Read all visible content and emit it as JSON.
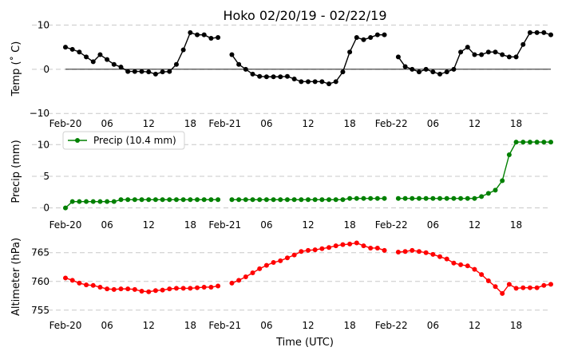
{
  "chart_data": {
    "title": "Hoko 02/20/19 - 02/22/19",
    "xlabel": "Time (UTC)",
    "x_ticks": [
      "Feb-20",
      "06",
      "12",
      "18",
      "Feb-21",
      "06",
      "12",
      "18",
      "Feb-22",
      "06",
      "12",
      "18"
    ],
    "panels": [
      {
        "type": "line",
        "ylabel": "Temp (˚ C)",
        "ylim": [
          -10.5,
          10.8
        ],
        "yticks": [
          "10",
          "0",
          "−10"
        ],
        "ytick_values": [
          10,
          0,
          -10
        ],
        "grid": true,
        "zero_line": true,
        "series": [
          {
            "color": "#000000",
            "values": [
              5.0,
              4.5,
              3.9,
              2.8,
              1.7,
              3.3,
              2.2,
              1.1,
              0.5,
              -0.5,
              -0.5,
              -0.5,
              -0.6,
              -1.1,
              -0.6,
              -0.5,
              1.1,
              4.4,
              8.3,
              7.8,
              7.8,
              7.0,
              7.2,
              null,
              3.3,
              1.1,
              0.0,
              -1.1,
              -1.6,
              -1.7,
              -1.7,
              -1.7,
              -1.6,
              -2.2,
              -2.8,
              -2.8,
              -2.8,
              -2.8,
              -3.3,
              -2.8,
              -0.6,
              3.9,
              7.2,
              6.7,
              7.2,
              7.8,
              7.8,
              null,
              2.8,
              0.6,
              0.0,
              -0.6,
              0.0,
              -0.6,
              -1.1,
              -0.6,
              0.0,
              3.9,
              5.0,
              3.3,
              3.3,
              3.9,
              3.9,
              3.3,
              2.8,
              2.8,
              5.6,
              8.3,
              8.3,
              8.3,
              7.8
            ]
          }
        ]
      },
      {
        "type": "line",
        "ylabel": "Precip (mm)",
        "ylim": [
          -0.3,
          11.8
        ],
        "yticks": [
          "10",
          "5",
          "0"
        ],
        "ytick_values": [
          10,
          5,
          0
        ],
        "grid": true,
        "legend": "top-left",
        "series": [
          {
            "name": "Precip (10.4 mm)",
            "color": "#008000",
            "values": [
              0.0,
              1.0,
              1.0,
              1.0,
              1.0,
              1.0,
              1.0,
              1.0,
              1.3,
              1.3,
              1.3,
              1.3,
              1.3,
              1.3,
              1.3,
              1.3,
              1.3,
              1.3,
              1.3,
              1.3,
              1.3,
              1.3,
              1.3,
              null,
              1.3,
              1.3,
              1.3,
              1.3,
              1.3,
              1.3,
              1.3,
              1.3,
              1.3,
              1.3,
              1.3,
              1.3,
              1.3,
              1.3,
              1.3,
              1.3,
              1.3,
              1.5,
              1.5,
              1.5,
              1.5,
              1.5,
              1.5,
              null,
              1.5,
              1.5,
              1.5,
              1.5,
              1.5,
              1.5,
              1.5,
              1.5,
              1.5,
              1.5,
              1.5,
              1.5,
              1.8,
              2.3,
              2.8,
              4.3,
              8.4,
              10.4,
              10.4,
              10.4,
              10.4,
              10.4,
              10.4
            ]
          }
        ]
      },
      {
        "type": "line",
        "ylabel": "Altimeter (hPa)",
        "ylim": [
          754.0,
          767.6
        ],
        "yticks": [
          "765",
          "760",
          "755"
        ],
        "ytick_values": [
          765,
          760,
          755
        ],
        "grid": true,
        "series": [
          {
            "color": "#ff0000",
            "values": [
              760.6,
              760.2,
              759.7,
              759.4,
              759.3,
              759.0,
              758.7,
              758.6,
              758.7,
              758.7,
              758.6,
              758.3,
              758.2,
              758.4,
              758.5,
              758.7,
              758.8,
              758.8,
              758.8,
              758.9,
              759.0,
              759.0,
              759.2,
              null,
              759.7,
              760.2,
              760.8,
              761.5,
              762.2,
              762.8,
              763.3,
              763.6,
              764.1,
              764.6,
              765.2,
              765.4,
              765.5,
              765.7,
              765.9,
              766.2,
              766.4,
              766.5,
              766.7,
              766.2,
              765.8,
              765.8,
              765.4,
              null,
              765.1,
              765.2,
              765.4,
              765.2,
              765.0,
              764.7,
              764.3,
              763.9,
              763.2,
              762.9,
              762.7,
              762.1,
              761.2,
              760.1,
              759.1,
              757.9,
              759.5,
              758.8,
              758.9,
              758.9,
              758.9,
              759.3,
              759.5
            ]
          }
        ]
      }
    ]
  }
}
